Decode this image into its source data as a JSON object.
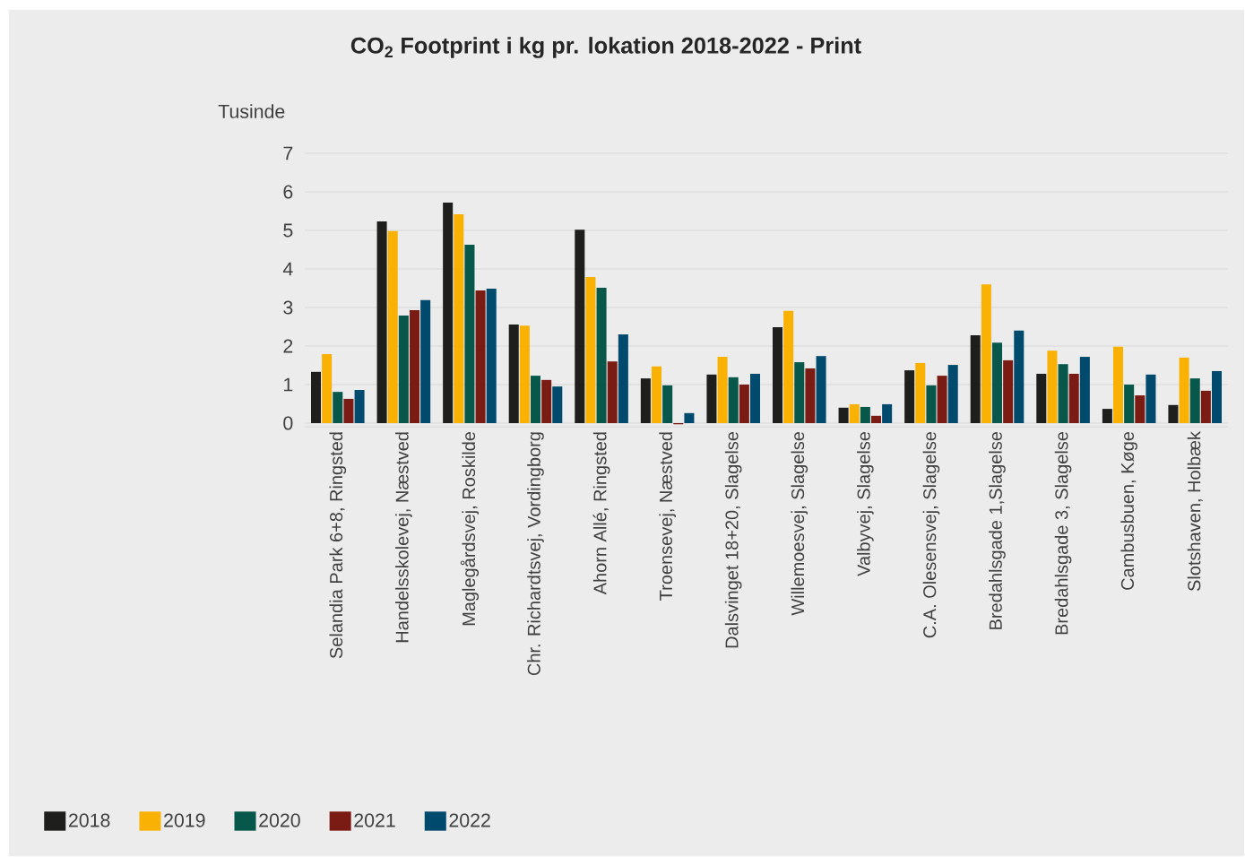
{
  "chart_data": {
    "type": "bar",
    "title": "CO$_{2}$ Footprint i kg pr. lokation 2018-2022 - Print",
    "ylabel": "Tusinde",
    "categories": [
      "Selandia Park 6+8, Ringsted",
      "Handelsskolevej, Næstved",
      "Maglegårdsvej, Roskilde",
      "Chr. Richardtsvej, Vordingborg",
      "Ahorn Allé, Ringsted",
      "Troensevej, Næstved",
      "Dalsvinget 18+20, Slagelse",
      "Willemoesvej, Slagelse",
      "Valbyvej, Slagelse",
      "C.A. Olesensvej, Slagelse",
      "Bredahlsgade 1,Slagelse",
      "Bredahlsgade 3, Slagelse",
      "Cambusbuen, Køge",
      "Slotshaven, Holbæk"
    ],
    "series": [
      {
        "name": "2018",
        "color": "#1e1e1c",
        "values": [
          1.33,
          5.23,
          5.72,
          2.56,
          5.02,
          1.16,
          1.26,
          2.49,
          0.4,
          1.37,
          2.28,
          1.28,
          0.37,
          0.47
        ]
      },
      {
        "name": "2019",
        "color": "#f9b104",
        "values": [
          1.79,
          4.98,
          5.42,
          2.53,
          3.79,
          1.47,
          1.72,
          2.91,
          0.49,
          1.56,
          3.6,
          1.88,
          1.98,
          1.7
        ]
      },
      {
        "name": "2020",
        "color": "#07574a",
        "values": [
          0.81,
          2.79,
          4.63,
          1.23,
          3.51,
          0.98,
          1.19,
          1.58,
          0.42,
          0.98,
          2.09,
          1.53,
          1.0,
          1.16
        ]
      },
      {
        "name": "2021",
        "color": "#7b1c14",
        "values": [
          0.63,
          2.93,
          3.44,
          1.12,
          1.6,
          -0.03,
          1.0,
          1.42,
          0.19,
          1.23,
          1.63,
          1.28,
          0.72,
          0.84
        ]
      },
      {
        "name": "2022",
        "color": "#004a6e",
        "values": [
          0.86,
          3.19,
          3.49,
          0.95,
          2.3,
          0.26,
          1.28,
          1.74,
          0.49,
          1.51,
          2.4,
          1.72,
          1.26,
          1.35
        ]
      }
    ],
    "ylim": [
      -0.1,
      7
    ],
    "yticks": [
      0,
      1,
      2,
      3,
      4,
      5,
      6,
      7
    ],
    "grid": "y",
    "legend": "bottom left"
  }
}
